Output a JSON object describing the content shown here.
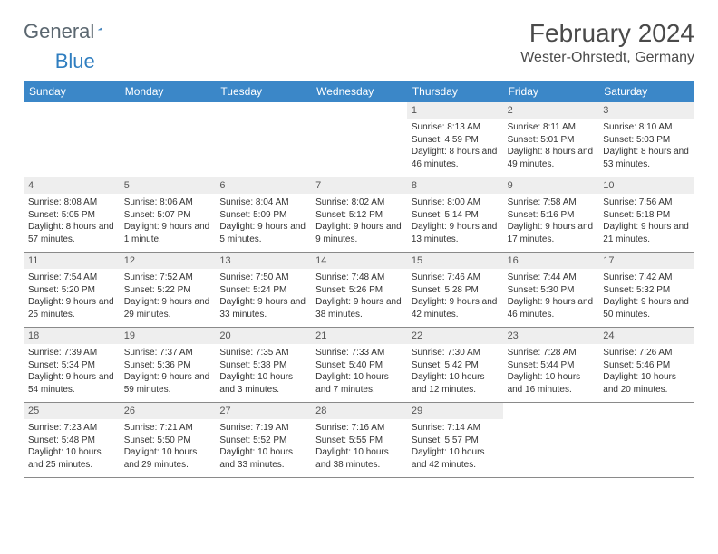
{
  "brand": {
    "word1": "General",
    "word2": "Blue"
  },
  "title": "February 2024",
  "location": "Wester-Ohrstedt, Germany",
  "colors": {
    "header_bg": "#3b87c8",
    "header_text": "#ffffff",
    "daynum_bg": "#eeeeee",
    "border": "#8a8a8a",
    "logo_gray": "#5b6770",
    "logo_blue": "#2f7ec0",
    "body_text": "#333333"
  },
  "days_of_week": [
    "Sunday",
    "Monday",
    "Tuesday",
    "Wednesday",
    "Thursday",
    "Friday",
    "Saturday"
  ],
  "weeks": [
    [
      {
        "n": "",
        "lines": []
      },
      {
        "n": "",
        "lines": []
      },
      {
        "n": "",
        "lines": []
      },
      {
        "n": "",
        "lines": []
      },
      {
        "n": "1",
        "lines": [
          "Sunrise: 8:13 AM",
          "Sunset: 4:59 PM",
          "Daylight: 8 hours and 46 minutes."
        ]
      },
      {
        "n": "2",
        "lines": [
          "Sunrise: 8:11 AM",
          "Sunset: 5:01 PM",
          "Daylight: 8 hours and 49 minutes."
        ]
      },
      {
        "n": "3",
        "lines": [
          "Sunrise: 8:10 AM",
          "Sunset: 5:03 PM",
          "Daylight: 8 hours and 53 minutes."
        ]
      }
    ],
    [
      {
        "n": "4",
        "lines": [
          "Sunrise: 8:08 AM",
          "Sunset: 5:05 PM",
          "Daylight: 8 hours and 57 minutes."
        ]
      },
      {
        "n": "5",
        "lines": [
          "Sunrise: 8:06 AM",
          "Sunset: 5:07 PM",
          "Daylight: 9 hours and 1 minute."
        ]
      },
      {
        "n": "6",
        "lines": [
          "Sunrise: 8:04 AM",
          "Sunset: 5:09 PM",
          "Daylight: 9 hours and 5 minutes."
        ]
      },
      {
        "n": "7",
        "lines": [
          "Sunrise: 8:02 AM",
          "Sunset: 5:12 PM",
          "Daylight: 9 hours and 9 minutes."
        ]
      },
      {
        "n": "8",
        "lines": [
          "Sunrise: 8:00 AM",
          "Sunset: 5:14 PM",
          "Daylight: 9 hours and 13 minutes."
        ]
      },
      {
        "n": "9",
        "lines": [
          "Sunrise: 7:58 AM",
          "Sunset: 5:16 PM",
          "Daylight: 9 hours and 17 minutes."
        ]
      },
      {
        "n": "10",
        "lines": [
          "Sunrise: 7:56 AM",
          "Sunset: 5:18 PM",
          "Daylight: 9 hours and 21 minutes."
        ]
      }
    ],
    [
      {
        "n": "11",
        "lines": [
          "Sunrise: 7:54 AM",
          "Sunset: 5:20 PM",
          "Daylight: 9 hours and 25 minutes."
        ]
      },
      {
        "n": "12",
        "lines": [
          "Sunrise: 7:52 AM",
          "Sunset: 5:22 PM",
          "Daylight: 9 hours and 29 minutes."
        ]
      },
      {
        "n": "13",
        "lines": [
          "Sunrise: 7:50 AM",
          "Sunset: 5:24 PM",
          "Daylight: 9 hours and 33 minutes."
        ]
      },
      {
        "n": "14",
        "lines": [
          "Sunrise: 7:48 AM",
          "Sunset: 5:26 PM",
          "Daylight: 9 hours and 38 minutes."
        ]
      },
      {
        "n": "15",
        "lines": [
          "Sunrise: 7:46 AM",
          "Sunset: 5:28 PM",
          "Daylight: 9 hours and 42 minutes."
        ]
      },
      {
        "n": "16",
        "lines": [
          "Sunrise: 7:44 AM",
          "Sunset: 5:30 PM",
          "Daylight: 9 hours and 46 minutes."
        ]
      },
      {
        "n": "17",
        "lines": [
          "Sunrise: 7:42 AM",
          "Sunset: 5:32 PM",
          "Daylight: 9 hours and 50 minutes."
        ]
      }
    ],
    [
      {
        "n": "18",
        "lines": [
          "Sunrise: 7:39 AM",
          "Sunset: 5:34 PM",
          "Daylight: 9 hours and 54 minutes."
        ]
      },
      {
        "n": "19",
        "lines": [
          "Sunrise: 7:37 AM",
          "Sunset: 5:36 PM",
          "Daylight: 9 hours and 59 minutes."
        ]
      },
      {
        "n": "20",
        "lines": [
          "Sunrise: 7:35 AM",
          "Sunset: 5:38 PM",
          "Daylight: 10 hours and 3 minutes."
        ]
      },
      {
        "n": "21",
        "lines": [
          "Sunrise: 7:33 AM",
          "Sunset: 5:40 PM",
          "Daylight: 10 hours and 7 minutes."
        ]
      },
      {
        "n": "22",
        "lines": [
          "Sunrise: 7:30 AM",
          "Sunset: 5:42 PM",
          "Daylight: 10 hours and 12 minutes."
        ]
      },
      {
        "n": "23",
        "lines": [
          "Sunrise: 7:28 AM",
          "Sunset: 5:44 PM",
          "Daylight: 10 hours and 16 minutes."
        ]
      },
      {
        "n": "24",
        "lines": [
          "Sunrise: 7:26 AM",
          "Sunset: 5:46 PM",
          "Daylight: 10 hours and 20 minutes."
        ]
      }
    ],
    [
      {
        "n": "25",
        "lines": [
          "Sunrise: 7:23 AM",
          "Sunset: 5:48 PM",
          "Daylight: 10 hours and 25 minutes."
        ]
      },
      {
        "n": "26",
        "lines": [
          "Sunrise: 7:21 AM",
          "Sunset: 5:50 PM",
          "Daylight: 10 hours and 29 minutes."
        ]
      },
      {
        "n": "27",
        "lines": [
          "Sunrise: 7:19 AM",
          "Sunset: 5:52 PM",
          "Daylight: 10 hours and 33 minutes."
        ]
      },
      {
        "n": "28",
        "lines": [
          "Sunrise: 7:16 AM",
          "Sunset: 5:55 PM",
          "Daylight: 10 hours and 38 minutes."
        ]
      },
      {
        "n": "29",
        "lines": [
          "Sunrise: 7:14 AM",
          "Sunset: 5:57 PM",
          "Daylight: 10 hours and 42 minutes."
        ]
      },
      {
        "n": "",
        "lines": []
      },
      {
        "n": "",
        "lines": []
      }
    ]
  ]
}
